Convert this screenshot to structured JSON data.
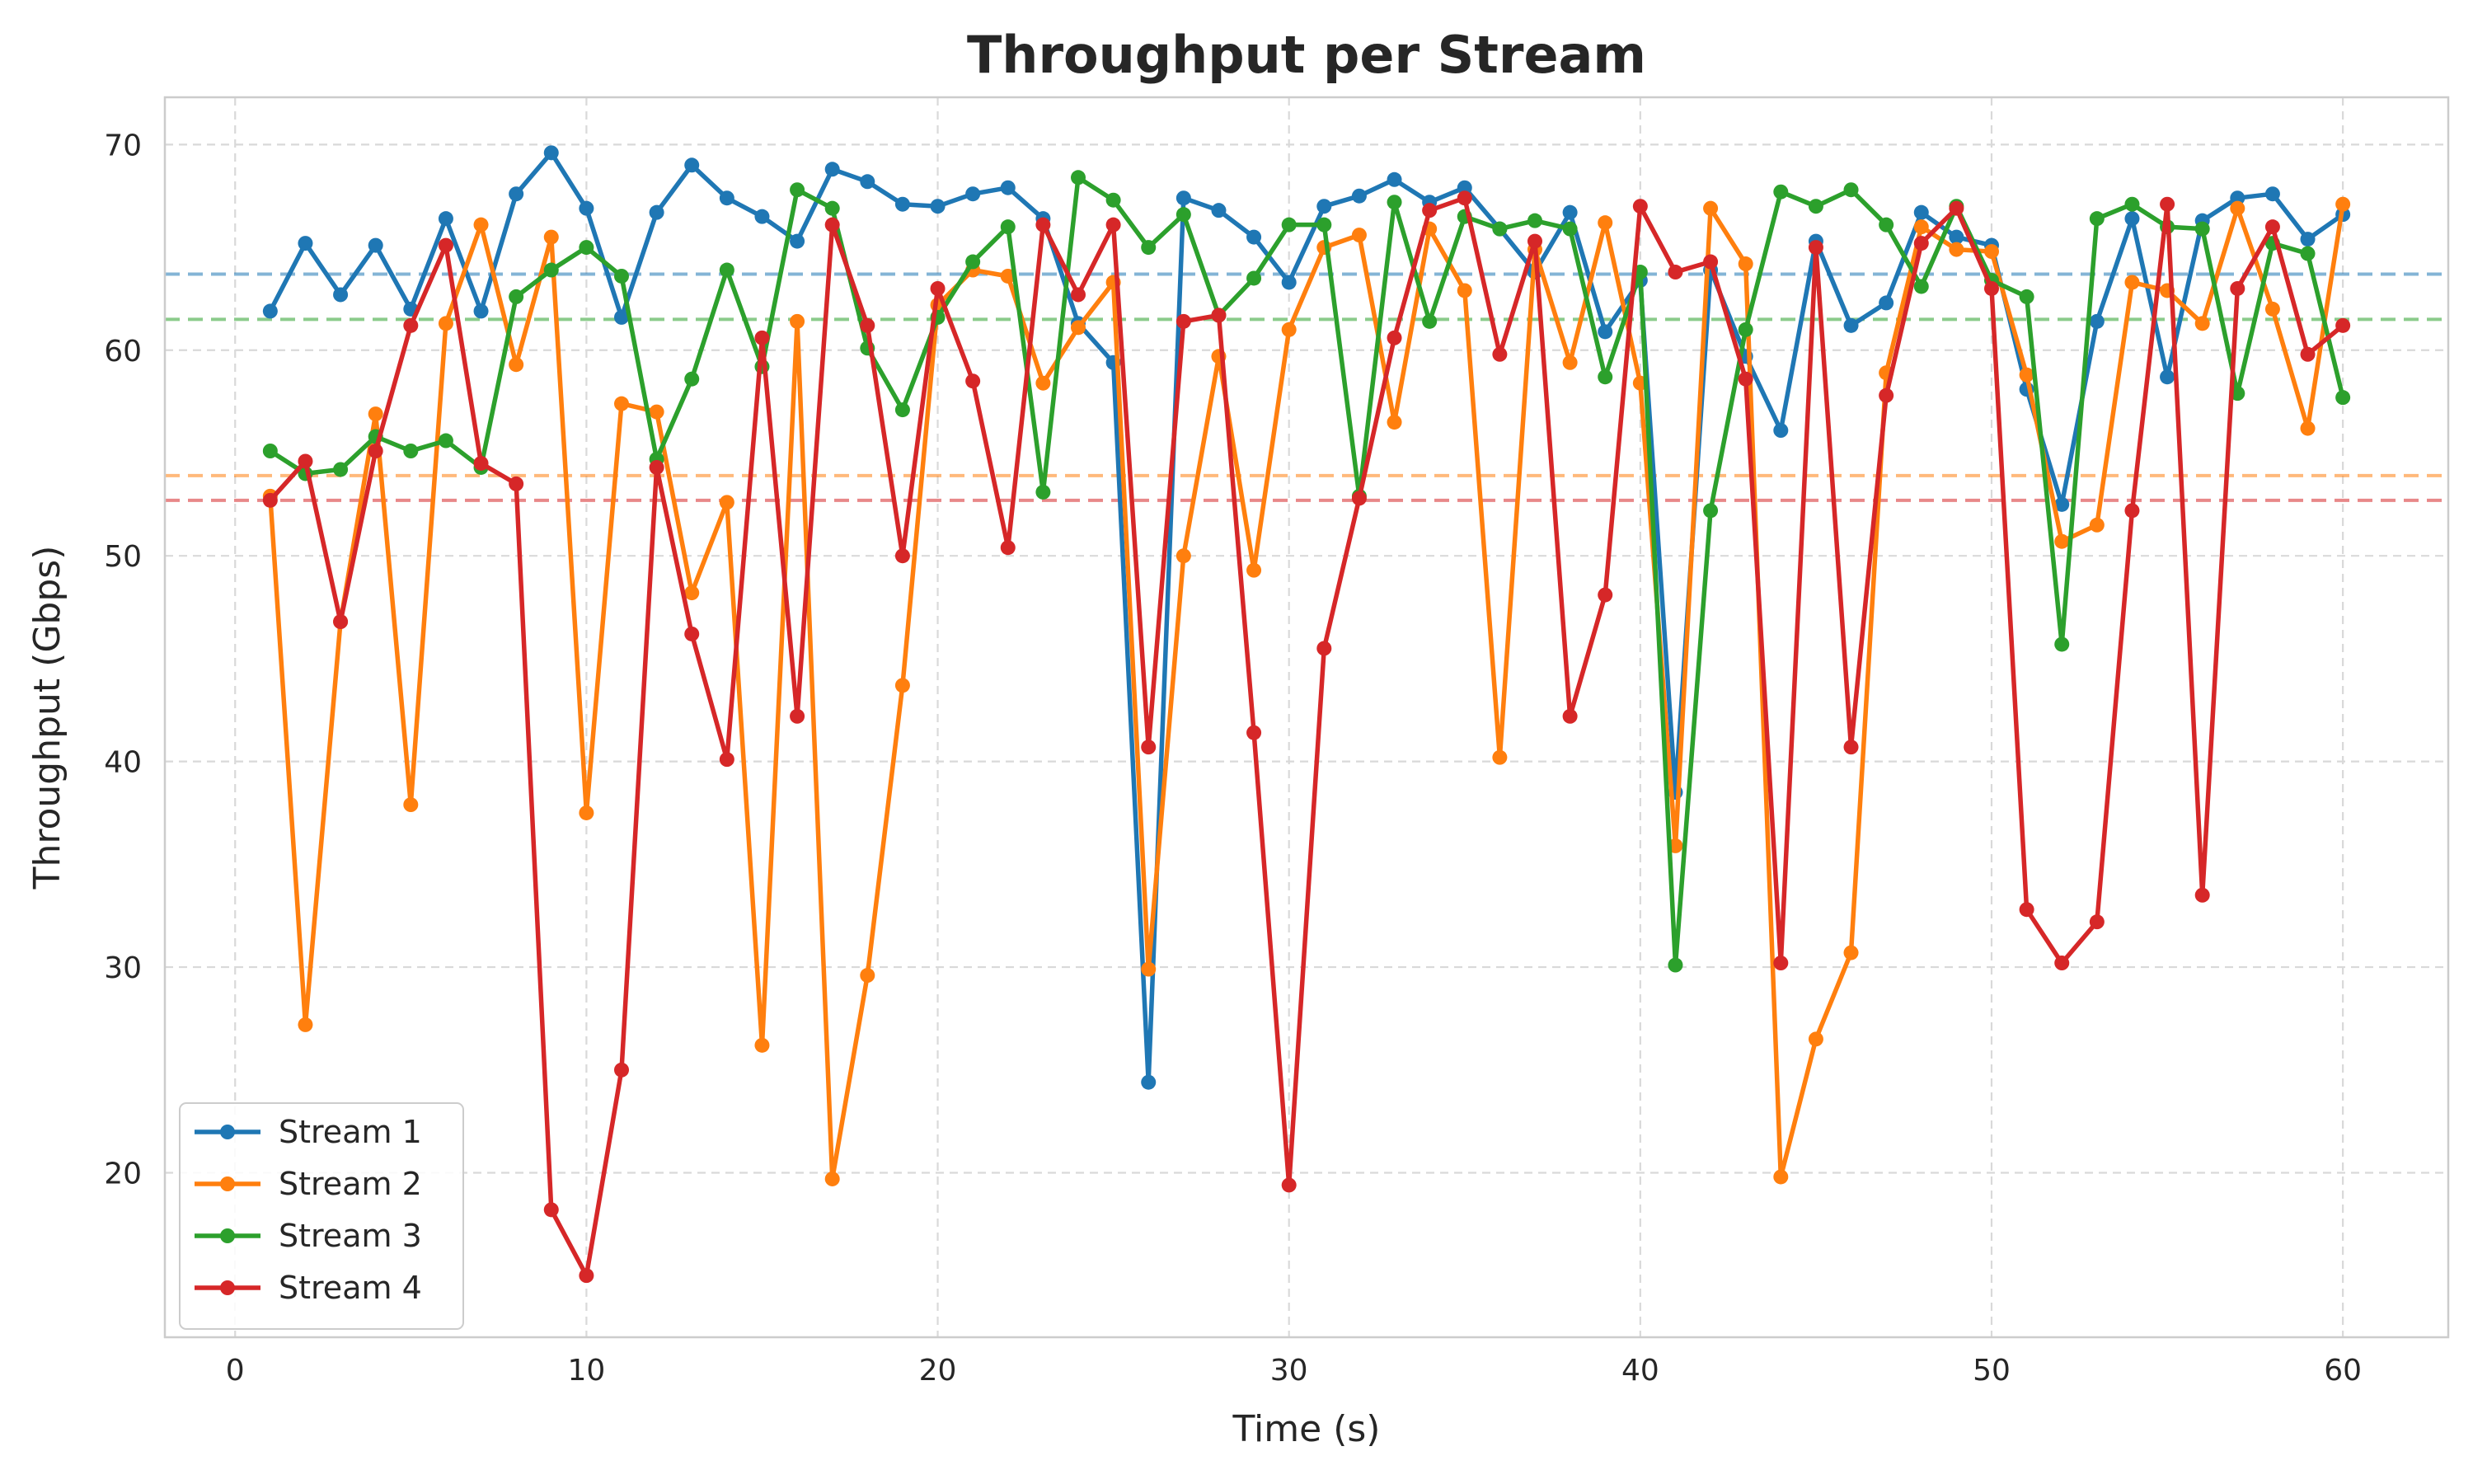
{
  "chart_data": {
    "type": "line",
    "title": "Throughput per Stream",
    "xlabel": "Time (s)",
    "ylabel": "Throughput (Gbps)",
    "xlim": [
      -2,
      63
    ],
    "ylim": [
      12,
      72.3
    ],
    "xticks": [
      0,
      10,
      20,
      30,
      40,
      50,
      60
    ],
    "yticks": [
      20,
      30,
      40,
      50,
      60,
      70
    ],
    "grid": true,
    "legend_position": "lower-left",
    "x": [
      1,
      2,
      3,
      4,
      5,
      6,
      7,
      8,
      9,
      10,
      11,
      12,
      13,
      14,
      15,
      16,
      17,
      18,
      19,
      20,
      21,
      22,
      23,
      24,
      25,
      26,
      27,
      28,
      29,
      30,
      31,
      32,
      33,
      34,
      35,
      36,
      37,
      38,
      39,
      40,
      41,
      42,
      43,
      44,
      45,
      46,
      47,
      48,
      49,
      50,
      51,
      52,
      53,
      54,
      55,
      56,
      57,
      58,
      59,
      60
    ],
    "series": [
      {
        "name": "Stream 1",
        "color": "#1f77b4",
        "mean": 63.7,
        "values": [
          61.9,
          65.2,
          62.7,
          65.1,
          62.0,
          66.4,
          61.9,
          67.6,
          69.6,
          66.9,
          61.6,
          66.7,
          69.0,
          67.4,
          66.5,
          65.3,
          68.8,
          68.2,
          67.1,
          67.0,
          67.6,
          67.9,
          66.4,
          61.3,
          59.4,
          24.4,
          67.4,
          66.8,
          65.5,
          63.3,
          67.0,
          67.5,
          68.3,
          67.2,
          67.9,
          65.9,
          63.8,
          66.7,
          60.9,
          63.4,
          38.5,
          63.9,
          59.7,
          56.1,
          65.3,
          61.2,
          62.3,
          66.7,
          65.5,
          65.1,
          58.1,
          52.5,
          61.4,
          66.4,
          58.7,
          66.3,
          67.4,
          67.6,
          65.4,
          66.6
        ]
      },
      {
        "name": "Stream 2",
        "color": "#ff7f0e",
        "mean": 53.9,
        "values": [
          52.9,
          27.2,
          46.8,
          56.9,
          37.9,
          61.3,
          66.1,
          59.3,
          65.5,
          37.5,
          57.4,
          57.0,
          48.2,
          52.6,
          26.2,
          61.4,
          19.7,
          29.6,
          43.7,
          62.2,
          63.9,
          63.6,
          58.4,
          61.1,
          63.3,
          29.9,
          50.0,
          59.7,
          49.3,
          61.0,
          65.0,
          65.6,
          56.5,
          65.9,
          62.9,
          40.2,
          64.9,
          59.4,
          66.2,
          58.4,
          35.9,
          66.9,
          64.2,
          19.8,
          26.5,
          30.7,
          58.9,
          66.0,
          64.9,
          64.8,
          58.8,
          50.7,
          51.5,
          63.3,
          62.9,
          61.3,
          66.9,
          62.0,
          56.2,
          67.1
        ]
      },
      {
        "name": "Stream 3",
        "color": "#2ca02c",
        "mean": 61.5,
        "values": [
          55.1,
          54.0,
          54.2,
          55.8,
          55.1,
          55.6,
          54.3,
          62.6,
          63.9,
          65.0,
          63.6,
          54.7,
          58.6,
          63.9,
          59.2,
          67.8,
          66.9,
          60.1,
          57.1,
          61.6,
          64.3,
          66.0,
          53.1,
          68.4,
          67.3,
          65.0,
          66.6,
          61.7,
          63.5,
          66.1,
          66.1,
          52.9,
          67.2,
          61.4,
          66.5,
          65.9,
          66.3,
          65.9,
          58.7,
          63.8,
          30.1,
          52.2,
          61.0,
          67.7,
          67.0,
          67.8,
          66.1,
          63.1,
          67.0,
          63.4,
          62.6,
          45.7,
          66.4,
          67.1,
          66.0,
          65.9,
          57.9,
          65.2,
          64.7,
          57.7
        ]
      },
      {
        "name": "Stream 4",
        "color": "#d62728",
        "mean": 52.7,
        "values": [
          52.7,
          54.6,
          46.8,
          55.1,
          61.2,
          65.1,
          54.5,
          53.5,
          18.2,
          15.0,
          25.0,
          54.3,
          46.2,
          40.1,
          60.6,
          42.2,
          66.1,
          61.2,
          50.0,
          63.0,
          58.5,
          50.4,
          66.1,
          62.7,
          66.1,
          40.7,
          61.4,
          61.7,
          41.4,
          19.4,
          45.5,
          52.8,
          60.6,
          66.8,
          67.4,
          59.8,
          65.3,
          42.2,
          48.1,
          67.0,
          63.8,
          64.3,
          58.6,
          30.2,
          65.0,
          40.7,
          57.8,
          65.2,
          66.9,
          63.0,
          32.8,
          30.2,
          32.2,
          52.2,
          67.1,
          33.5,
          63.0,
          66.0,
          59.8,
          61.2
        ]
      }
    ]
  }
}
